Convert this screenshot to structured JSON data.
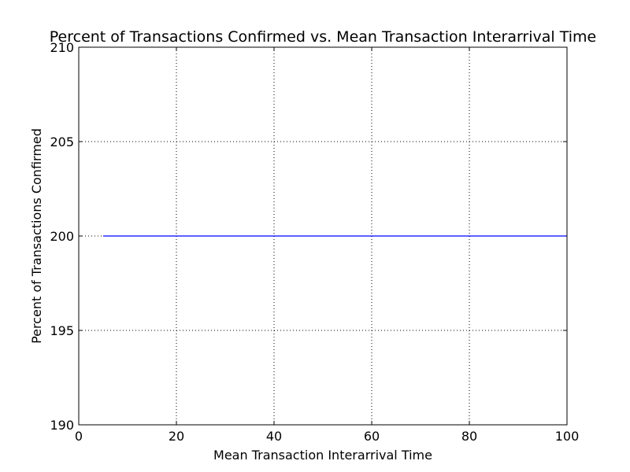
{
  "chart_data": {
    "type": "line",
    "title": "Percent of Transactions Confirmed vs. Mean Transaction Interarrival Time",
    "xlabel": "Mean Transaction Interarrival Time",
    "ylabel": "Percent of Transactions Confirmed",
    "xlim": [
      0,
      100
    ],
    "ylim": [
      190,
      210
    ],
    "x_ticks": [
      0,
      20,
      40,
      60,
      80,
      100
    ],
    "y_ticks": [
      190,
      195,
      200,
      205,
      210
    ],
    "x_tick_labels": [
      "0",
      "20",
      "40",
      "60",
      "80",
      "100"
    ],
    "y_tick_labels": [
      "190",
      "195",
      "200",
      "205",
      "210"
    ],
    "grid": true,
    "grid_style": "dotted",
    "series": [
      {
        "color": "#0000ff",
        "x": [
          5,
          10,
          15,
          20,
          25,
          30,
          35,
          40,
          45,
          50,
          55,
          60,
          65,
          70,
          75,
          80,
          85,
          90,
          95,
          100
        ],
        "y": [
          200,
          200,
          200,
          200,
          200,
          200,
          200,
          200,
          200,
          200,
          200,
          200,
          200,
          200,
          200,
          200,
          200,
          200,
          200,
          200
        ]
      }
    ]
  }
}
